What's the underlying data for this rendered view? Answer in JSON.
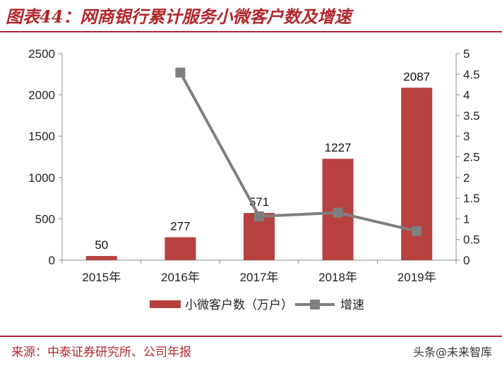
{
  "header": {
    "title": "图表44：网商银行累计服务小微客户数及增速"
  },
  "footer": {
    "source": "来源：中泰证券研究所、公司年报",
    "watermark": "头条@未来智库"
  },
  "colors": {
    "accent": "#b1272d",
    "bar": "#b7413f",
    "line": "#7f7f7f",
    "rule": "#b1272d"
  },
  "chart_data": {
    "type": "bar",
    "categories": [
      "2015年",
      "2016年",
      "2017年",
      "2018年",
      "2019年"
    ],
    "series": [
      {
        "name": "小微客户数（万户）",
        "type": "bar",
        "axis": "left",
        "values": [
          50,
          277,
          571,
          1227,
          2087
        ],
        "labels": [
          "50",
          "277",
          "571",
          "1227",
          "2087"
        ]
      },
      {
        "name": "增速",
        "type": "line",
        "axis": "right",
        "values": [
          null,
          4.54,
          1.06,
          1.15,
          0.7
        ]
      }
    ],
    "y_left": {
      "lim": [
        0,
        2500
      ],
      "ticks": [
        "0",
        "500",
        "1000",
        "1500",
        "2000",
        "2500"
      ]
    },
    "y_right": {
      "lim": [
        0,
        5
      ],
      "ticks": [
        "0",
        "0.5",
        "1",
        "1.5",
        "2",
        "2.5",
        "3",
        "3.5",
        "4",
        "4.5",
        "5"
      ]
    },
    "legend": {
      "position": "bottom"
    },
    "grid": false
  }
}
